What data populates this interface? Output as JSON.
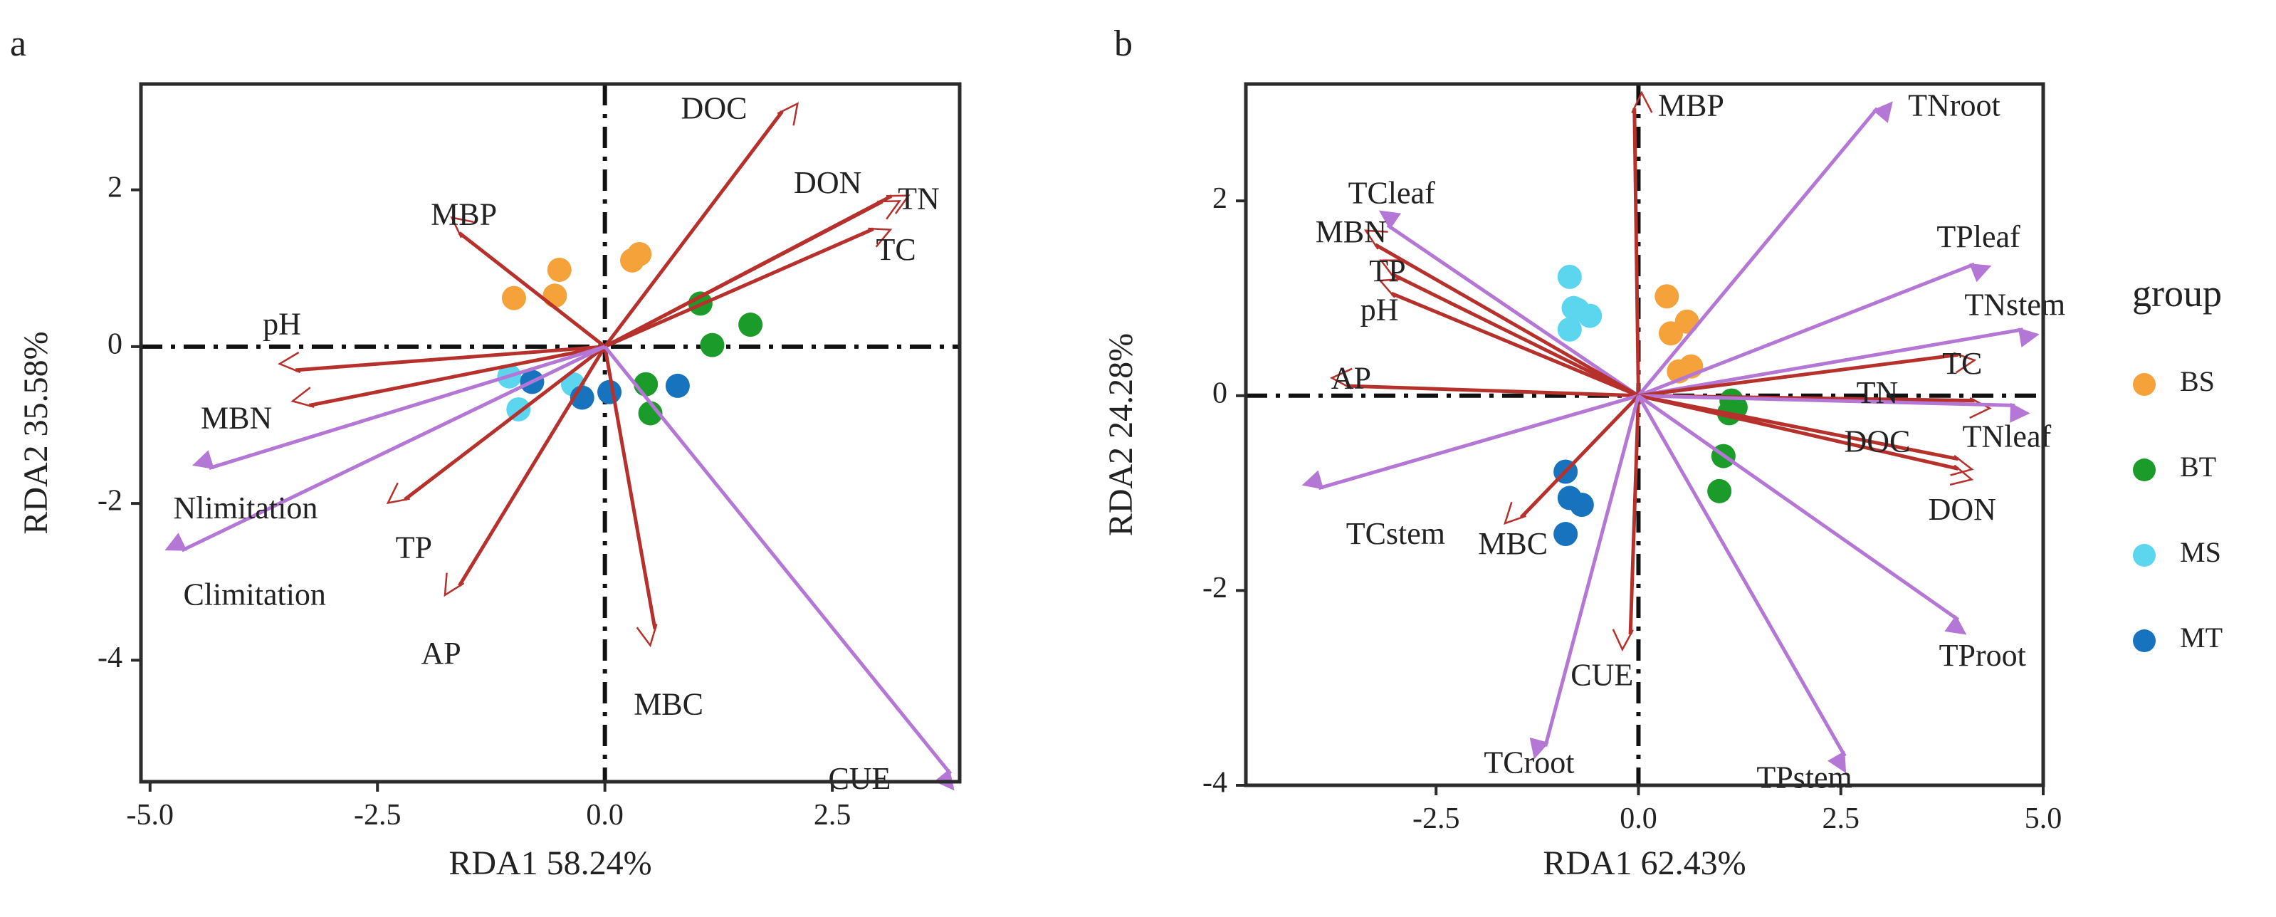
{
  "colors": {
    "env_arrow": "#B7312C",
    "bio_arrow": "#B477D6",
    "frame": "#2b2b2b",
    "ref_line": "#111111",
    "BS": "#F5A23A",
    "BT": "#1A9B2A",
    "MS": "#5BD6EE",
    "MT": "#1773BE"
  },
  "legend": {
    "title": "group",
    "items": [
      {
        "key": "BS",
        "label": "BS"
      },
      {
        "key": "BT",
        "label": "BT"
      },
      {
        "key": "MS",
        "label": "MS"
      },
      {
        "key": "MT",
        "label": "MT"
      }
    ]
  },
  "chart_data": [
    {
      "type": "scatter",
      "subtype": "rda-biplot",
      "panel": "a",
      "xlabel": "RDA1 58.24%",
      "ylabel": "RDA2 35.58%",
      "xlim": [
        -5.1,
        3.9
      ],
      "ylim": [
        -5.55,
        3.35
      ],
      "xticks": [
        {
          "v": -5.0,
          "label": "-5.0"
        },
        {
          "v": -2.5,
          "label": "-2.5"
        },
        {
          "v": 0.0,
          "label": "0.0"
        },
        {
          "v": 2.5,
          "label": "2.5"
        }
      ],
      "yticks": [
        {
          "v": 2,
          "label": "2"
        },
        {
          "v": 0,
          "label": "0"
        },
        {
          "v": -2,
          "label": "-2"
        },
        {
          "v": -4,
          "label": "-4"
        }
      ],
      "vectors": [
        {
          "name": "DOC",
          "x": 1.95,
          "y": 3.0,
          "kind": "env",
          "lx": 1.2,
          "ly": 3.0
        },
        {
          "name": "DON",
          "x": 3.05,
          "y": 1.85,
          "kind": "env",
          "lx": 2.45,
          "ly": 2.05
        },
        {
          "name": "TN",
          "x": 3.15,
          "y": 1.92,
          "kind": "env",
          "lx": 3.45,
          "ly": 1.85
        },
        {
          "name": "TC",
          "x": 2.95,
          "y": 1.5,
          "kind": "env",
          "lx": 3.2,
          "ly": 1.2
        },
        {
          "name": "MBP",
          "x": -1.6,
          "y": 1.45,
          "kind": "env",
          "lx": -1.55,
          "ly": 1.65
        },
        {
          "name": "pH",
          "x": -3.4,
          "y": -0.3,
          "kind": "env",
          "lx": -3.55,
          "ly": 0.25
        },
        {
          "name": "MBN",
          "x": -3.25,
          "y": -0.75,
          "kind": "env",
          "lx": -4.05,
          "ly": -0.95
        },
        {
          "name": "TP",
          "x": -2.2,
          "y": -1.95,
          "kind": "env",
          "lx": -2.1,
          "ly": -2.6
        },
        {
          "name": "AP",
          "x": -1.6,
          "y": -3.05,
          "kind": "env",
          "lx": -1.8,
          "ly": -3.95
        },
        {
          "name": "MBC",
          "x": 0.55,
          "y": -3.6,
          "kind": "env",
          "lx": 0.7,
          "ly": -4.6
        },
        {
          "name": "Nlimitation",
          "x": -4.35,
          "y": -1.55,
          "kind": "bio",
          "lx": -3.95,
          "ly": -2.1
        },
        {
          "name": "Climitation",
          "x": -4.65,
          "y": -2.6,
          "kind": "bio",
          "lx": -3.85,
          "ly": -3.2
        },
        {
          "name": "CUE",
          "x": 3.8,
          "y": -5.45,
          "kind": "bio",
          "lx": 2.8,
          "ly": -5.55
        }
      ],
      "points": [
        {
          "group": "BS",
          "x": -1.0,
          "y": 0.62
        },
        {
          "group": "BS",
          "x": -0.55,
          "y": 0.65
        },
        {
          "group": "BS",
          "x": -0.5,
          "y": 0.98
        },
        {
          "group": "BS",
          "x": 0.3,
          "y": 1.1
        },
        {
          "group": "BS",
          "x": 0.38,
          "y": 1.18
        },
        {
          "group": "BT",
          "x": 1.05,
          "y": 0.55
        },
        {
          "group": "BT",
          "x": 1.6,
          "y": 0.28
        },
        {
          "group": "BT",
          "x": 1.18,
          "y": 0.02
        },
        {
          "group": "BT",
          "x": 0.45,
          "y": -0.48
        },
        {
          "group": "BT",
          "x": 0.5,
          "y": -0.85
        },
        {
          "group": "MS",
          "x": -1.05,
          "y": -0.38
        },
        {
          "group": "MS",
          "x": -0.95,
          "y": -0.8
        },
        {
          "group": "MS",
          "x": -0.35,
          "y": -0.48
        },
        {
          "group": "MT",
          "x": -0.8,
          "y": -0.45
        },
        {
          "group": "MT",
          "x": -0.25,
          "y": -0.65
        },
        {
          "group": "MT",
          "x": 0.05,
          "y": -0.58
        },
        {
          "group": "MT",
          "x": 0.8,
          "y": -0.5
        }
      ]
    },
    {
      "type": "scatter",
      "subtype": "rda-biplot",
      "panel": "b",
      "xlabel": "RDA1 62.43%",
      "ylabel": "RDA2 24.28%",
      "xlim": [
        -4.85,
        5.0
      ],
      "ylim": [
        -4.0,
        3.2
      ],
      "xticks": [
        {
          "v": -2.5,
          "label": "-2.5"
        },
        {
          "v": 0.0,
          "label": "0.0"
        },
        {
          "v": 2.5,
          "label": "2.5"
        },
        {
          "v": 5.0,
          "label": "5.0"
        }
      ],
      "yticks": [
        {
          "v": 2,
          "label": "2"
        },
        {
          "v": 0,
          "label": "0"
        },
        {
          "v": -2,
          "label": "-2"
        },
        {
          "v": -4,
          "label": "-4"
        }
      ],
      "vectors": [
        {
          "name": "MBP",
          "x": -0.05,
          "y": 2.95,
          "kind": "env",
          "lx": 0.65,
          "ly": 2.95
        },
        {
          "name": "TNroot",
          "x": 2.95,
          "y": 2.95,
          "kind": "bio",
          "lx": 3.9,
          "ly": 2.95
        },
        {
          "name": "TCleaf",
          "x": -3.1,
          "y": 1.75,
          "kind": "bio",
          "lx": -3.05,
          "ly": 2.05
        },
        {
          "name": "TPleaf",
          "x": 4.15,
          "y": 1.35,
          "kind": "bio",
          "lx": 4.2,
          "ly": 1.6
        },
        {
          "name": "MBN",
          "x": -3.25,
          "y": 1.55,
          "kind": "env",
          "lx": -3.55,
          "ly": 1.65
        },
        {
          "name": "TP",
          "x": -3.05,
          "y": 1.25,
          "kind": "env",
          "lx": -3.1,
          "ly": 1.25
        },
        {
          "name": "pH",
          "x": -3.05,
          "y": 1.05,
          "kind": "env",
          "lx": -3.2,
          "ly": 0.85
        },
        {
          "name": "TNstem",
          "x": 4.75,
          "y": 0.68,
          "kind": "bio",
          "lx": 4.65,
          "ly": 0.9
        },
        {
          "name": "TC",
          "x": 3.95,
          "y": 0.42,
          "kind": "env",
          "lx": 4.0,
          "ly": 0.3
        },
        {
          "name": "AP",
          "x": -3.6,
          "y": 0.1,
          "kind": "env",
          "lx": -3.55,
          "ly": 0.15
        },
        {
          "name": "TN",
          "x": 4.15,
          "y": -0.05,
          "kind": "env",
          "lx": 2.95,
          "ly": 0.0
        },
        {
          "name": "DOC",
          "x": 3.95,
          "y": -0.65,
          "kind": "env",
          "lx": 2.95,
          "ly": -0.5
        },
        {
          "name": "TNleaf",
          "x": 4.65,
          "y": -0.1,
          "kind": "bio",
          "lx": 4.55,
          "ly": -0.45
        },
        {
          "name": "DON",
          "x": 3.95,
          "y": -0.75,
          "kind": "env",
          "lx": 4.0,
          "ly": -1.2
        },
        {
          "name": "TCstem",
          "x": -3.95,
          "y": -0.95,
          "kind": "bio",
          "lx": -3.0,
          "ly": -1.45
        },
        {
          "name": "MBC",
          "x": -1.45,
          "y": -1.25,
          "kind": "env",
          "lx": -1.55,
          "ly": -1.55
        },
        {
          "name": "CUE",
          "x": -0.1,
          "y": -2.45,
          "kind": "env",
          "lx": -0.45,
          "ly": -2.9
        },
        {
          "name": "TProot",
          "x": 3.95,
          "y": -2.3,
          "kind": "bio",
          "lx": 4.25,
          "ly": -2.7
        },
        {
          "name": "TCroot",
          "x": -1.15,
          "y": -3.6,
          "kind": "bio",
          "lx": -1.35,
          "ly": -3.8
        },
        {
          "name": "TPstem",
          "x": 2.55,
          "y": -3.7,
          "kind": "bio",
          "lx": 2.05,
          "ly": -3.95
        }
      ],
      "points": [
        {
          "group": "BS",
          "x": 0.35,
          "y": 1.02
        },
        {
          "group": "BS",
          "x": 0.6,
          "y": 0.76
        },
        {
          "group": "BS",
          "x": 0.4,
          "y": 0.64
        },
        {
          "group": "BS",
          "x": 0.65,
          "y": 0.3
        },
        {
          "group": "BS",
          "x": 0.5,
          "y": 0.25
        },
        {
          "group": "BT",
          "x": 1.15,
          "y": -0.05
        },
        {
          "group": "BT",
          "x": 1.12,
          "y": -0.18
        },
        {
          "group": "BT",
          "x": 1.2,
          "y": -0.12
        },
        {
          "group": "BT",
          "x": 1.05,
          "y": -0.62
        },
        {
          "group": "BT",
          "x": 1.0,
          "y": -0.98
        },
        {
          "group": "MS",
          "x": -0.85,
          "y": 1.22
        },
        {
          "group": "MS",
          "x": -0.75,
          "y": 0.88
        },
        {
          "group": "MS",
          "x": -0.6,
          "y": 0.82
        },
        {
          "group": "MS",
          "x": -0.8,
          "y": 0.9
        },
        {
          "group": "MS",
          "x": -0.85,
          "y": 0.68
        },
        {
          "group": "MT",
          "x": -0.9,
          "y": -0.78
        },
        {
          "group": "MT",
          "x": -0.85,
          "y": -1.05
        },
        {
          "group": "MT",
          "x": -0.7,
          "y": -1.12
        },
        {
          "group": "MT",
          "x": -0.9,
          "y": -1.42
        }
      ]
    }
  ]
}
